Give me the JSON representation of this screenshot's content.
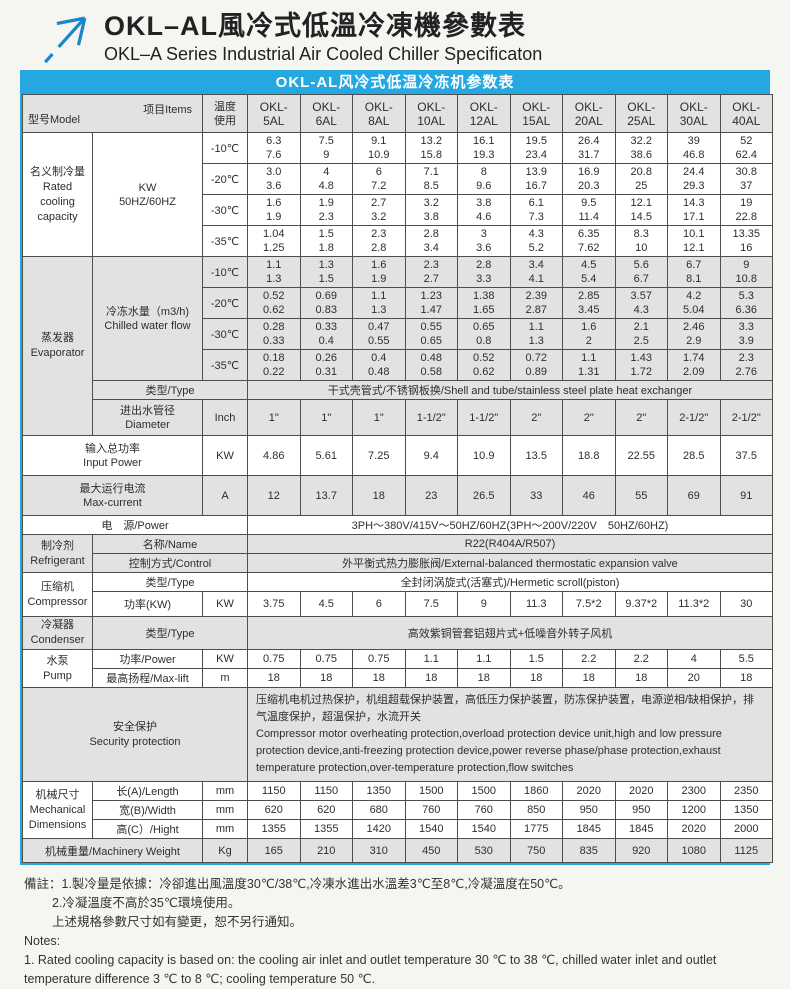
{
  "page": {
    "title_zh": "OKL–AL風冷式低溫冷凍機參數表",
    "title_en": "OKL–A Series Industrial Air Cooled Chiller Specificaton"
  },
  "colors": {
    "accent_blue": "#25a8e0",
    "row_gray": "#e2e2e1",
    "border": "#4d4d4d"
  },
  "table": {
    "header_bar": "OKL-AL风冷式低温冷冻机参数表",
    "corner": {
      "model": "型号Model",
      "items": "项目Items"
    },
    "temp_header": "温度\n使用",
    "models_l1": [
      "OKL-",
      "OKL-",
      "OKL-",
      "OKL-",
      "OKL-",
      "OKL-",
      "OKL-",
      "OKL-",
      "OKL-",
      "OKL-"
    ],
    "models_l2": [
      "5AL",
      "6AL",
      "8AL",
      "10AL",
      "12AL",
      "15AL",
      "20AL",
      "25AL",
      "30AL",
      "40AL"
    ],
    "cooling": {
      "label": "名义制冷量\nRated\ncooling\ncapacity",
      "unit": "KW\n50HZ/60HZ",
      "rows": [
        {
          "temp": "-10℃",
          "hz50": [
            "6.3",
            "7.5",
            "9.1",
            "13.2",
            "16.1",
            "19.5",
            "26.4",
            "32.2",
            "39",
            "52"
          ],
          "hz60": [
            "7.6",
            "9",
            "10.9",
            "15.8",
            "19.3",
            "23.4",
            "31.7",
            "38.6",
            "46.8",
            "62.4"
          ]
        },
        {
          "temp": "-20℃",
          "hz50": [
            "3.0",
            "4",
            "6",
            "7.1",
            "8",
            "13.9",
            "16.9",
            "20.8",
            "24.4",
            "30.8"
          ],
          "hz60": [
            "3.6",
            "4.8",
            "7.2",
            "8.5",
            "9.6",
            "16.7",
            "20.3",
            "25",
            "29.3",
            "37"
          ]
        },
        {
          "temp": "-30℃",
          "hz50": [
            "1.6",
            "1.9",
            "2.7",
            "3.2",
            "3.8",
            "6.1",
            "9.5",
            "12.1",
            "14.3",
            "19"
          ],
          "hz60": [
            "1.9",
            "2.3",
            "3.2",
            "3.8",
            "4.6",
            "7.3",
            "11.4",
            "14.5",
            "17.1",
            "22.8"
          ]
        },
        {
          "temp": "-35℃",
          "hz50": [
            "1.04",
            "1.5",
            "2.3",
            "2.8",
            "3",
            "4.3",
            "6.35",
            "8.3",
            "10.1",
            "13.35"
          ],
          "hz60": [
            "1.25",
            "1.8",
            "2.8",
            "3.4",
            "3.6",
            "5.2",
            "7.62",
            "10",
            "12.1",
            "16"
          ]
        }
      ]
    },
    "evaporator": {
      "label": "蒸发器\nEvaporator",
      "flow_label": "冷冻水量（m3/h)\nChilled water flow",
      "rows": [
        {
          "temp": "-10℃",
          "hz50": [
            "1.1",
            "1.3",
            "1.6",
            "2.3",
            "2.8",
            "3.4",
            "4.5",
            "5.6",
            "6.7",
            "9"
          ],
          "hz60": [
            "1.3",
            "1.5",
            "1.9",
            "2.7",
            "3.3",
            "4.1",
            "5.4",
            "6.7",
            "8.1",
            "10.8"
          ]
        },
        {
          "temp": "-20℃",
          "hz50": [
            "0.52",
            "0.69",
            "1.1",
            "1.23",
            "1.38",
            "2.39",
            "2.85",
            "3.57",
            "4.2",
            "5.3"
          ],
          "hz60": [
            "0.62",
            "0.83",
            "1.3",
            "1.47",
            "1.65",
            "2.87",
            "3.45",
            "4.3",
            "5.04",
            "6.36"
          ]
        },
        {
          "temp": "-30℃",
          "hz50": [
            "0.28",
            "0.33",
            "0.47",
            "0.55",
            "0.65",
            "1.1",
            "1.6",
            "2.1",
            "2.46",
            "3.3"
          ],
          "hz60": [
            "0.33",
            "0.4",
            "0.55",
            "0.65",
            "0.8",
            "1.3",
            "2",
            "2.5",
            "2.9",
            "3.9"
          ]
        },
        {
          "temp": "-35℃",
          "hz50": [
            "0.18",
            "0.26",
            "0.4",
            "0.48",
            "0.52",
            "0.72",
            "1.1",
            "1.43",
            "1.74",
            "2.3"
          ],
          "hz60": [
            "0.22",
            "0.31",
            "0.48",
            "0.58",
            "0.62",
            "0.89",
            "1.31",
            "1.72",
            "2.09",
            "2.76"
          ]
        }
      ],
      "type_label": "类型/Type",
      "type_value": "干式壳管式/不锈钢板换/Shell and tube/stainless steel plate heat exchanger",
      "diameter_label": "进出水管径\nDiameter",
      "diameter_unit": "Inch",
      "diameter_values": [
        "1\"",
        "1\"",
        "1\"",
        "1-1/2\"",
        "1-1/2\"",
        "2\"",
        "2\"",
        "2\"",
        "2-1/2\"",
        "2-1/2\""
      ]
    },
    "input_power": {
      "label": "输入总功率\nInput Power",
      "unit": "KW",
      "values": [
        "4.86",
        "5.61",
        "7.25",
        "9.4",
        "10.9",
        "13.5",
        "18.8",
        "22.55",
        "28.5",
        "37.5"
      ]
    },
    "max_current": {
      "label": "最大运行电流\nMax-current",
      "unit": "A",
      "values": [
        "12",
        "13.7",
        "18",
        "23",
        "26.5",
        "33",
        "46",
        "55",
        "69",
        "91"
      ]
    },
    "power_supply": {
      "label": "电　源/Power",
      "value": "3PH～380V/415V～50HZ/60HZ(3PH～200V/220V　50HZ/60HZ)"
    },
    "refrigerant": {
      "label": "制冷剂\nRefrigerant",
      "name_label": "名称/Name",
      "name_value": "R22(R404A/R507)",
      "control_label": "控制方式/Control",
      "control_value": "外平衡式热力膨胀阀/External-balanced thermostatic expansion valve"
    },
    "compressor": {
      "label": "压缩机\nCompressor",
      "type_label": "类型/Type",
      "type_value": "全封闭涡旋式(活塞式)/Hermetic scroll(piston)",
      "power_label": "功率(KW)",
      "power_unit": "KW",
      "power_values": [
        "3.75",
        "4.5",
        "6",
        "7.5",
        "9",
        "11.3",
        "7.5*2",
        "9.37*2",
        "11.3*2",
        "30"
      ]
    },
    "condenser": {
      "label": "冷凝器\nCondenser",
      "type_label": "类型/Type",
      "type_value": "高效紫铜管套铝翅片式+低噪音外转子风机"
    },
    "pump": {
      "label": "水泵\nPump",
      "power_label": "功率/Power",
      "power_unit": "KW",
      "power_values": [
        "0.75",
        "0.75",
        "0.75",
        "1.1",
        "1.1",
        "1.5",
        "2.2",
        "2.2",
        "4",
        "5.5"
      ],
      "lift_label": "最高扬程/Max-lift",
      "lift_unit": "m",
      "lift_values": [
        "18",
        "18",
        "18",
        "18",
        "18",
        "18",
        "18",
        "18",
        "20",
        "18"
      ]
    },
    "security": {
      "label": "安全保护\nSecurity protection",
      "text_zh": "压缩机电机过热保护，机组超载保护装置，高低压力保护装置，防冻保护装置，电源逆相/缺相保护，排气温度保护，超温保护，水流开关",
      "text_en": "Compressor motor overheating protection,overload protection device unit,high and low pressure protection device,anti-freezing protection device,power reverse phase/phase protection,exhaust temperature protection,over-temperature protection,flow switches"
    },
    "dimensions": {
      "label": "机械尺寸\nMechanical\nDimensions",
      "rows": [
        {
          "label": "长(A)/Length",
          "unit": "mm",
          "values": [
            "1150",
            "1150",
            "1350",
            "1500",
            "1500",
            "1860",
            "2020",
            "2020",
            "2300",
            "2350"
          ]
        },
        {
          "label": "宽(B)/Width",
          "unit": "mm",
          "values": [
            "620",
            "620",
            "680",
            "760",
            "760",
            "850",
            "950",
            "950",
            "1200",
            "1350"
          ]
        },
        {
          "label": "高(C）/Hight",
          "unit": "mm",
          "values": [
            "1355",
            "1355",
            "1420",
            "1540",
            "1540",
            "1775",
            "1845",
            "1845",
            "2020",
            "2000"
          ]
        }
      ]
    },
    "weight": {
      "label": "机械重量/Machinery Weight",
      "unit": "Kg",
      "values": [
        "165",
        "210",
        "310",
        "450",
        "530",
        "750",
        "835",
        "920",
        "1080",
        "1125"
      ]
    }
  },
  "notes": {
    "lines": [
      "備註：1.製冷量是依據：冷卻進出風溫度30℃/38℃,冷凍水進出水溫差3℃至8℃,冷凝溫度在50℃。",
      "2.冷凝溫度不高於35℃環境使用。",
      "上述規格參數尺寸如有變更，恕不另行通知。",
      "Notes:",
      "1. Rated cooling capacity is based on: the cooling air inlet and outlet temperature 30 ℃ to 38 ℃, chilled water inlet and outlet temperature difference 3 ℃ to 8 ℃; cooling temperature 50 ℃."
    ]
  }
}
